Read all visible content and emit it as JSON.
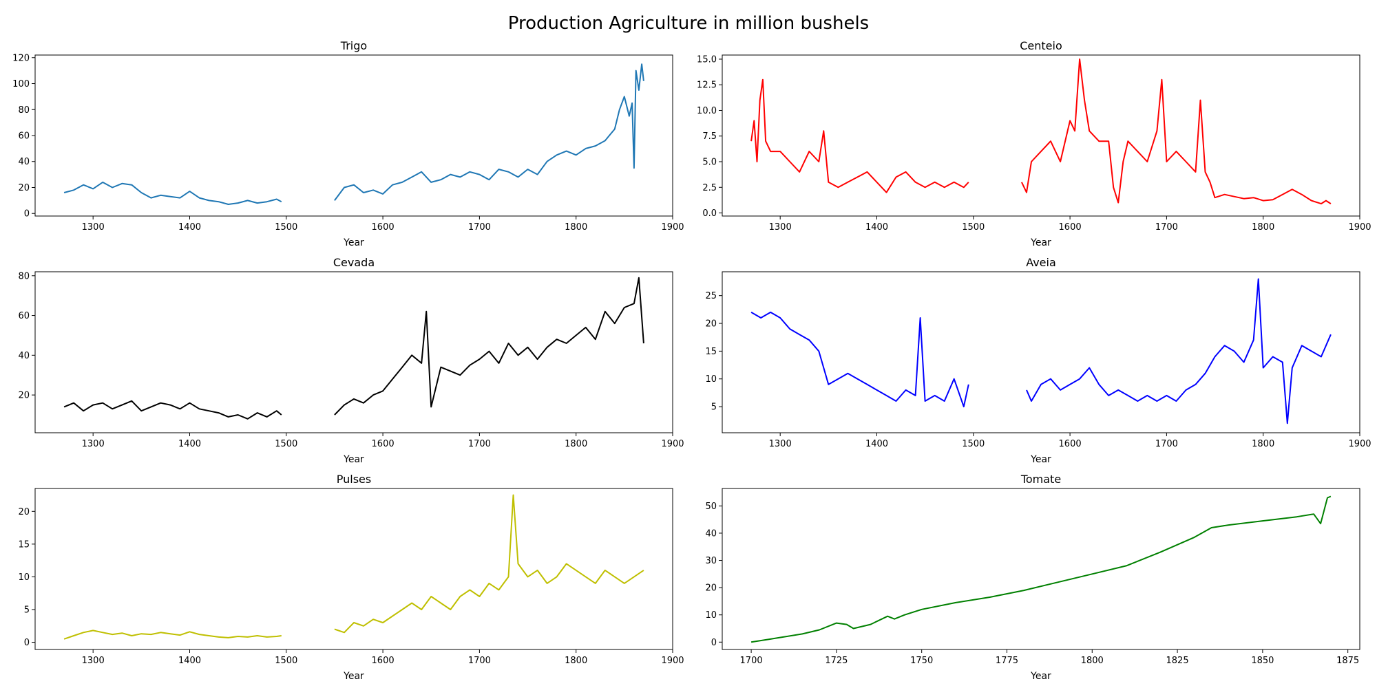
{
  "figure": {
    "suptitle": "Production Agriculture in million bushels"
  },
  "chart_data": [
    {
      "type": "line",
      "title": "Trigo",
      "xlabel": "Year",
      "ylabel": "",
      "color": "#1f77b4",
      "xlim": [
        1240,
        1900
      ],
      "ylim": [
        -2,
        122
      ],
      "xticks": [
        1300,
        1400,
        1500,
        1600,
        1700,
        1800,
        1900
      ],
      "yticks": [
        0,
        20,
        40,
        60,
        80,
        100,
        120
      ],
      "ytick_labels": [
        "0",
        "20",
        "40",
        "60",
        "80",
        "100",
        "120"
      ],
      "series": [
        {
          "x": [
            1270,
            1280,
            1290,
            1300,
            1310,
            1320,
            1330,
            1340,
            1350,
            1360,
            1370,
            1380,
            1390,
            1400,
            1410,
            1420,
            1430,
            1440,
            1450,
            1460,
            1470,
            1480,
            1490,
            1495
          ],
          "y": [
            16,
            18,
            22,
            19,
            24,
            20,
            23,
            22,
            16,
            12,
            14,
            13,
            12,
            17,
            12,
            10,
            9,
            7,
            8,
            10,
            8,
            9,
            11,
            9
          ]
        },
        {
          "x": [
            1550,
            1560,
            1570,
            1580,
            1590,
            1600,
            1610,
            1620,
            1630,
            1640,
            1650,
            1660,
            1670,
            1680,
            1690,
            1700,
            1710,
            1720,
            1730,
            1740,
            1750,
            1760,
            1770,
            1780,
            1790,
            1800,
            1810,
            1820,
            1830,
            1840,
            1845,
            1850,
            1855,
            1858,
            1860,
            1862,
            1865,
            1868,
            1870
          ],
          "y": [
            10,
            20,
            22,
            16,
            18,
            15,
            22,
            24,
            28,
            32,
            24,
            26,
            30,
            28,
            32,
            30,
            26,
            34,
            32,
            28,
            34,
            30,
            40,
            45,
            48,
            45,
            50,
            52,
            56,
            65,
            80,
            90,
            75,
            85,
            35,
            110,
            95,
            115,
            102
          ]
        }
      ]
    },
    {
      "type": "line",
      "title": "Centeio",
      "xlabel": "Year",
      "ylabel": "",
      "color": "#ff0000",
      "xlim": [
        1240,
        1900
      ],
      "ylim": [
        -0.3,
        15.4
      ],
      "xticks": [
        1300,
        1400,
        1500,
        1600,
        1700,
        1800,
        1900
      ],
      "yticks": [
        0,
        2.5,
        5,
        7.5,
        10,
        12.5,
        15
      ],
      "ytick_labels": [
        "0.0",
        "2.5",
        "5.0",
        "7.5",
        "10.0",
        "12.5",
        "15.0"
      ],
      "series": [
        {
          "x": [
            1270,
            1273,
            1276,
            1279,
            1282,
            1285,
            1290,
            1300,
            1310,
            1320,
            1330,
            1340,
            1345,
            1350,
            1360,
            1370,
            1380,
            1390,
            1400,
            1410,
            1420,
            1430,
            1440,
            1450,
            1460,
            1470,
            1480,
            1490,
            1495
          ],
          "y": [
            7,
            9,
            5,
            11,
            13,
            7,
            6,
            6,
            5,
            4,
            6,
            5,
            8,
            3,
            2.5,
            3,
            3.5,
            4,
            3,
            2,
            3.5,
            4,
            3,
            2.5,
            3,
            2.5,
            3,
            2.5,
            3
          ]
        },
        {
          "x": [
            1550,
            1555,
            1560,
            1570,
            1580,
            1590,
            1600,
            1605,
            1610,
            1615,
            1620,
            1630,
            1640,
            1645,
            1650,
            1655,
            1660,
            1670,
            1680,
            1690,
            1695,
            1700,
            1710,
            1720,
            1730,
            1735,
            1740,
            1745,
            1750,
            1760,
            1770,
            1780,
            1790,
            1800,
            1810,
            1820,
            1830,
            1840,
            1850,
            1860,
            1865,
            1870
          ],
          "y": [
            3,
            2,
            5,
            6,
            7,
            5,
            9,
            8,
            15,
            11,
            8,
            7,
            7,
            2.5,
            1,
            5,
            7,
            6,
            5,
            8,
            13,
            5,
            6,
            5,
            4,
            11,
            4,
            3,
            1.5,
            1.8,
            1.6,
            1.4,
            1.5,
            1.2,
            1.3,
            1.8,
            2.3,
            1.8,
            1.2,
            0.9,
            1.2,
            0.9
          ]
        }
      ]
    },
    {
      "type": "line",
      "title": "Cevada",
      "xlabel": "Year",
      "ylabel": "",
      "color": "#000000",
      "xlim": [
        1240,
        1900
      ],
      "ylim": [
        1,
        82
      ],
      "xticks": [
        1300,
        1400,
        1500,
        1600,
        1700,
        1800,
        1900
      ],
      "yticks": [
        20,
        40,
        60,
        80
      ],
      "ytick_labels": [
        "20",
        "40",
        "60",
        "80"
      ],
      "series": [
        {
          "x": [
            1270,
            1280,
            1290,
            1300,
            1310,
            1320,
            1330,
            1340,
            1350,
            1360,
            1370,
            1380,
            1390,
            1400,
            1410,
            1420,
            1430,
            1440,
            1450,
            1460,
            1470,
            1480,
            1490,
            1495
          ],
          "y": [
            14,
            16,
            12,
            15,
            16,
            13,
            15,
            17,
            12,
            14,
            16,
            15,
            13,
            16,
            13,
            12,
            11,
            9,
            10,
            8,
            11,
            9,
            12,
            10
          ]
        },
        {
          "x": [
            1550,
            1560,
            1570,
            1580,
            1590,
            1600,
            1610,
            1620,
            1630,
            1640,
            1645,
            1650,
            1660,
            1670,
            1680,
            1690,
            1700,
            1710,
            1720,
            1730,
            1740,
            1750,
            1760,
            1770,
            1780,
            1790,
            1800,
            1810,
            1820,
            1830,
            1840,
            1850,
            1860,
            1865,
            1870
          ],
          "y": [
            10,
            15,
            18,
            16,
            20,
            22,
            28,
            34,
            40,
            36,
            62,
            14,
            34,
            32,
            30,
            35,
            38,
            42,
            36,
            46,
            40,
            44,
            38,
            44,
            48,
            46,
            50,
            54,
            48,
            62,
            56,
            64,
            66,
            79,
            46
          ]
        }
      ]
    },
    {
      "type": "line",
      "title": "Aveia",
      "xlabel": "Year",
      "ylabel": "",
      "color": "#0000ff",
      "xlim": [
        1240,
        1900
      ],
      "ylim": [
        0.3,
        29.3
      ],
      "xticks": [
        1300,
        1400,
        1500,
        1600,
        1700,
        1800,
        1900
      ],
      "yticks": [
        5,
        10,
        15,
        20,
        25
      ],
      "ytick_labels": [
        "5",
        "10",
        "15",
        "20",
        "25"
      ],
      "series": [
        {
          "x": [
            1270,
            1280,
            1290,
            1300,
            1310,
            1320,
            1330,
            1340,
            1350,
            1360,
            1370,
            1380,
            1390,
            1400,
            1410,
            1420,
            1430,
            1440,
            1445,
            1450,
            1460,
            1470,
            1480,
            1490,
            1495
          ],
          "y": [
            22,
            21,
            22,
            21,
            19,
            18,
            17,
            15,
            9,
            10,
            11,
            10,
            9,
            8,
            7,
            6,
            8,
            7,
            21,
            6,
            7,
            6,
            10,
            5,
            9
          ]
        },
        {
          "x": [
            1555,
            1560,
            1570,
            1580,
            1590,
            1600,
            1610,
            1620,
            1630,
            1640,
            1650,
            1660,
            1670,
            1680,
            1690,
            1700,
            1710,
            1720,
            1730,
            1740,
            1750,
            1760,
            1770,
            1780,
            1790,
            1795,
            1800,
            1810,
            1820,
            1825,
            1830,
            1840,
            1850,
            1860,
            1870
          ],
          "y": [
            8,
            6,
            9,
            10,
            8,
            9,
            10,
            12,
            9,
            7,
            8,
            7,
            6,
            7,
            6,
            7,
            6,
            8,
            9,
            11,
            14,
            16,
            15,
            13,
            17,
            28,
            12,
            14,
            13,
            2,
            12,
            16,
            15,
            14,
            18
          ]
        }
      ]
    },
    {
      "type": "line",
      "title": "Pulses",
      "xlabel": "Year",
      "ylabel": "",
      "color": "#bfbf00",
      "xlim": [
        1240,
        1900
      ],
      "ylim": [
        -1.1,
        23.5
      ],
      "xticks": [
        1300,
        1400,
        1500,
        1600,
        1700,
        1800,
        1900
      ],
      "yticks": [
        0,
        5,
        10,
        15,
        20
      ],
      "ytick_labels": [
        "0",
        "5",
        "10",
        "15",
        "20"
      ],
      "series": [
        {
          "x": [
            1270,
            1280,
            1290,
            1300,
            1310,
            1320,
            1330,
            1340,
            1350,
            1360,
            1370,
            1380,
            1390,
            1400,
            1410,
            1420,
            1430,
            1440,
            1450,
            1460,
            1470,
            1480,
            1490,
            1495
          ],
          "y": [
            0.5,
            1,
            1.5,
            1.8,
            1.5,
            1.2,
            1.4,
            1.0,
            1.3,
            1.2,
            1.5,
            1.3,
            1.1,
            1.6,
            1.2,
            1.0,
            0.8,
            0.7,
            0.9,
            0.8,
            1.0,
            0.8,
            0.9,
            1.0
          ]
        },
        {
          "x": [
            1550,
            1560,
            1570,
            1580,
            1590,
            1600,
            1610,
            1620,
            1630,
            1640,
            1650,
            1660,
            1670,
            1680,
            1690,
            1700,
            1710,
            1720,
            1730,
            1735,
            1740,
            1750,
            1760,
            1770,
            1780,
            1790,
            1800,
            1810,
            1820,
            1830,
            1840,
            1850,
            1860,
            1870
          ],
          "y": [
            2,
            1.5,
            3,
            2.5,
            3.5,
            3,
            4,
            5,
            6,
            5,
            7,
            6,
            5,
            7,
            8,
            7,
            9,
            8,
            10,
            22.5,
            12,
            10,
            11,
            9,
            10,
            12,
            11,
            10,
            9,
            11,
            10,
            9,
            10,
            11
          ]
        }
      ]
    },
    {
      "type": "line",
      "title": "Tomate",
      "xlabel": "Year",
      "ylabel": "",
      "color": "#008000",
      "xlim": [
        1691.5,
        1878.5
      ],
      "ylim": [
        -2.7,
        56.4
      ],
      "xticks": [
        1700,
        1725,
        1750,
        1775,
        1800,
        1825,
        1850,
        1875
      ],
      "yticks": [
        0,
        10,
        20,
        30,
        40,
        50
      ],
      "ytick_labels": [
        "0",
        "10",
        "20",
        "30",
        "40",
        "50"
      ],
      "series": [
        {
          "x": [
            1700,
            1705,
            1710,
            1715,
            1720,
            1725,
            1728,
            1730,
            1735,
            1740,
            1742,
            1745,
            1750,
            1760,
            1770,
            1780,
            1790,
            1800,
            1810,
            1820,
            1830,
            1835,
            1840,
            1850,
            1860,
            1865,
            1867,
            1869,
            1870
          ],
          "y": [
            0,
            1,
            2,
            3,
            4.5,
            7,
            6.5,
            5,
            6.5,
            9.5,
            8.5,
            10,
            12,
            14.5,
            16.5,
            19,
            22,
            25,
            28,
            33,
            38.5,
            42,
            43,
            44.5,
            46,
            47,
            43.5,
            53,
            53.5
          ]
        }
      ]
    }
  ]
}
